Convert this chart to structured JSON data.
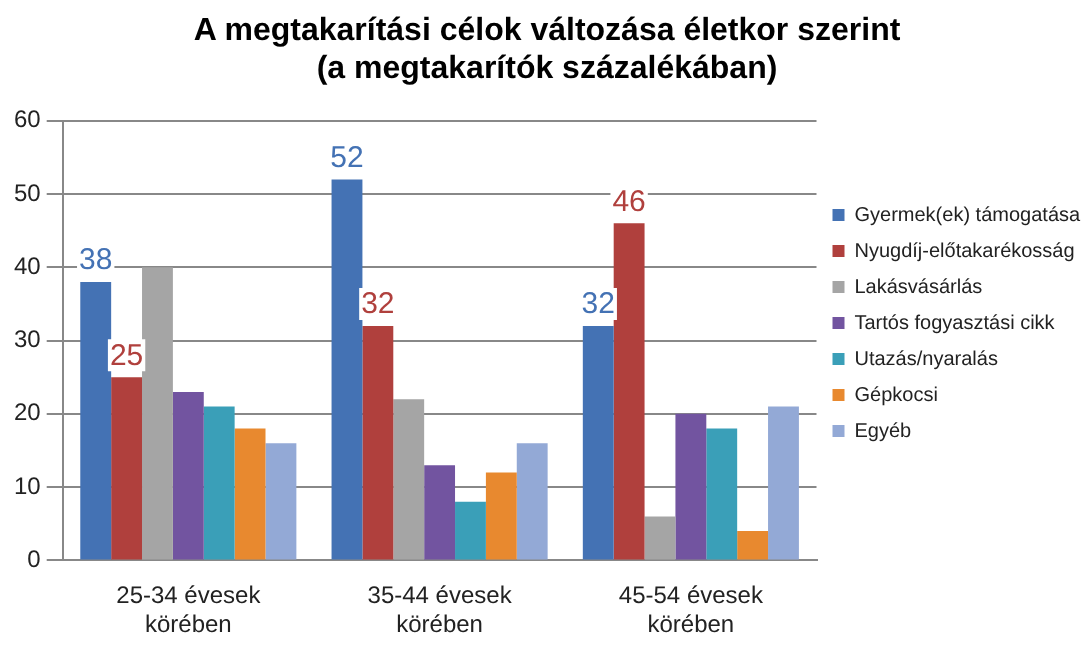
{
  "chart_data": {
    "type": "bar",
    "title": [
      "A megtakarítási célok változása életkor szerint",
      "(a megtakarítók százalékában)"
    ],
    "categories": [
      "25-34 évesek körében",
      "35-44 évesek körében",
      "45-54 évesek körében"
    ],
    "series": [
      {
        "name": "Gyermek(ek) támogatása",
        "color": "#4472b4",
        "values": [
          38,
          52,
          32
        ],
        "value_labels": [
          "38",
          "52",
          "32"
        ]
      },
      {
        "name": "Nyugdíj-előtakarékosság",
        "color": "#b0403d",
        "values": [
          25,
          32,
          46
        ],
        "value_labels": [
          "25",
          "32",
          "46"
        ]
      },
      {
        "name": "Lakásvásárlás",
        "color": "#a5a5a5",
        "values": [
          40,
          22,
          6
        ]
      },
      {
        "name": "Tartós fogyasztási cikk",
        "color": "#7254a0",
        "values": [
          23,
          13,
          20
        ]
      },
      {
        "name": "Utazás/nyaralás",
        "color": "#3a9fb8",
        "values": [
          21,
          8,
          18
        ]
      },
      {
        "name": "Gépkocsi",
        "color": "#e8892f",
        "values": [
          18,
          12,
          4
        ]
      },
      {
        "name": "Egyéb",
        "color": "#93a9d6",
        "values": [
          16,
          16,
          21
        ]
      }
    ],
    "ylim": [
      0,
      60
    ],
    "yticks": [
      0,
      10,
      20,
      30,
      40,
      50,
      60
    ],
    "grid": "y",
    "legend": "right"
  }
}
